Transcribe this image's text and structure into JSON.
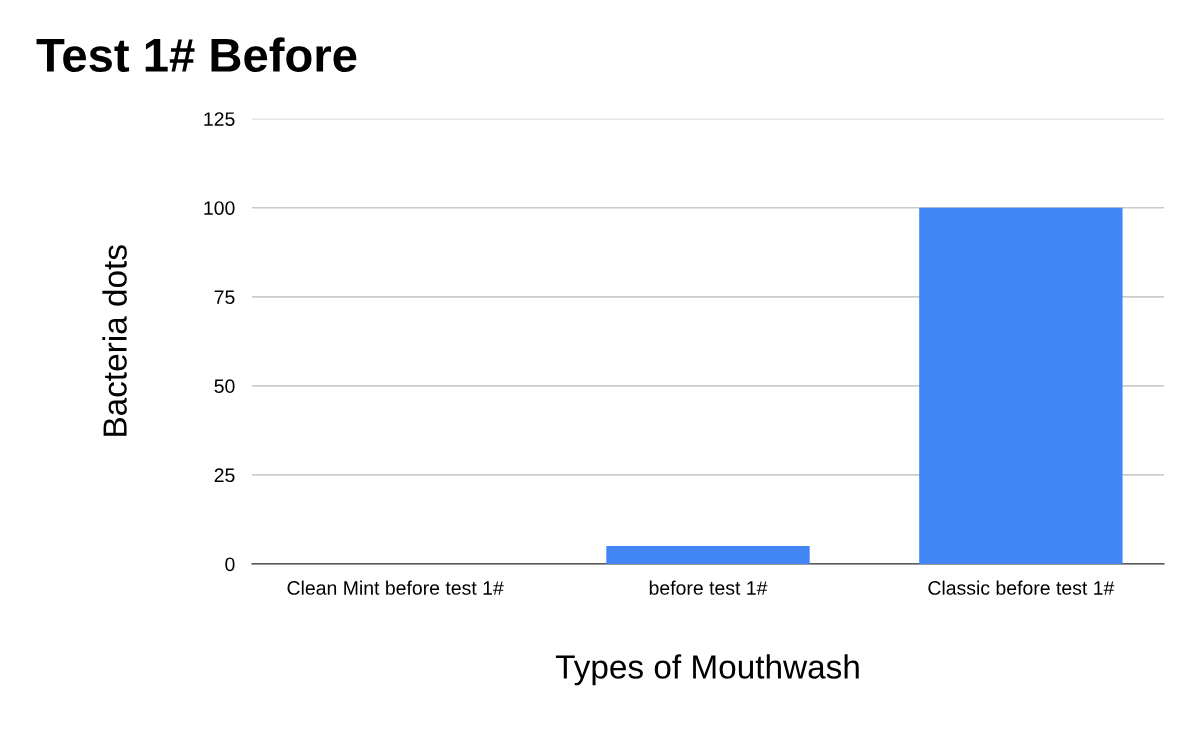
{
  "chart_data": {
    "type": "bar",
    "title": "Test 1# Before",
    "xlabel": "Types of Mouthwash",
    "ylabel": "Bacteria dots",
    "categories": [
      "Clean Mint before test 1#",
      "before test 1#",
      "Classic before test 1#"
    ],
    "values": [
      0,
      5,
      100
    ],
    "color": "#4285f4",
    "ylim": [
      0,
      125
    ],
    "yticks": [
      0,
      25,
      50,
      75,
      100,
      125
    ],
    "grid": "y"
  }
}
